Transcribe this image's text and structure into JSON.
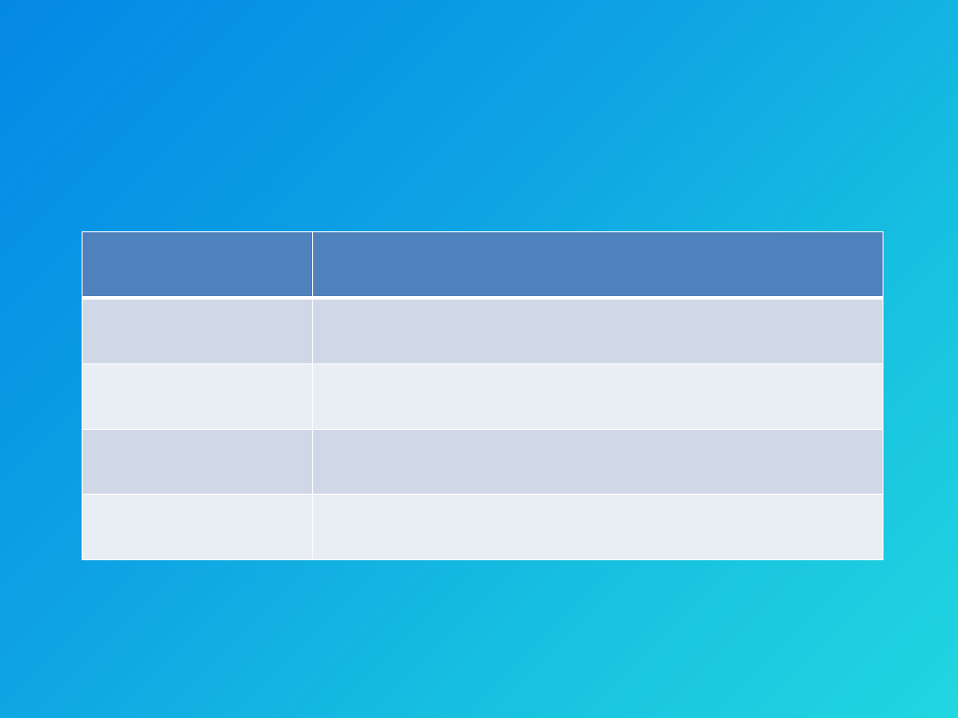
{
  "colors": {
    "background_start": "#0388e6",
    "background_end": "#22d6e0",
    "header_fill": "#4f81bd",
    "row_band_dark": "#d0d8e8",
    "row_band_light": "#e9edf4",
    "grid_lines": "#ffffff"
  },
  "table": {
    "headers": [
      "",
      ""
    ],
    "rows": [
      [
        "",
        ""
      ],
      [
        "",
        ""
      ],
      [
        "",
        ""
      ],
      [
        "",
        ""
      ]
    ]
  }
}
